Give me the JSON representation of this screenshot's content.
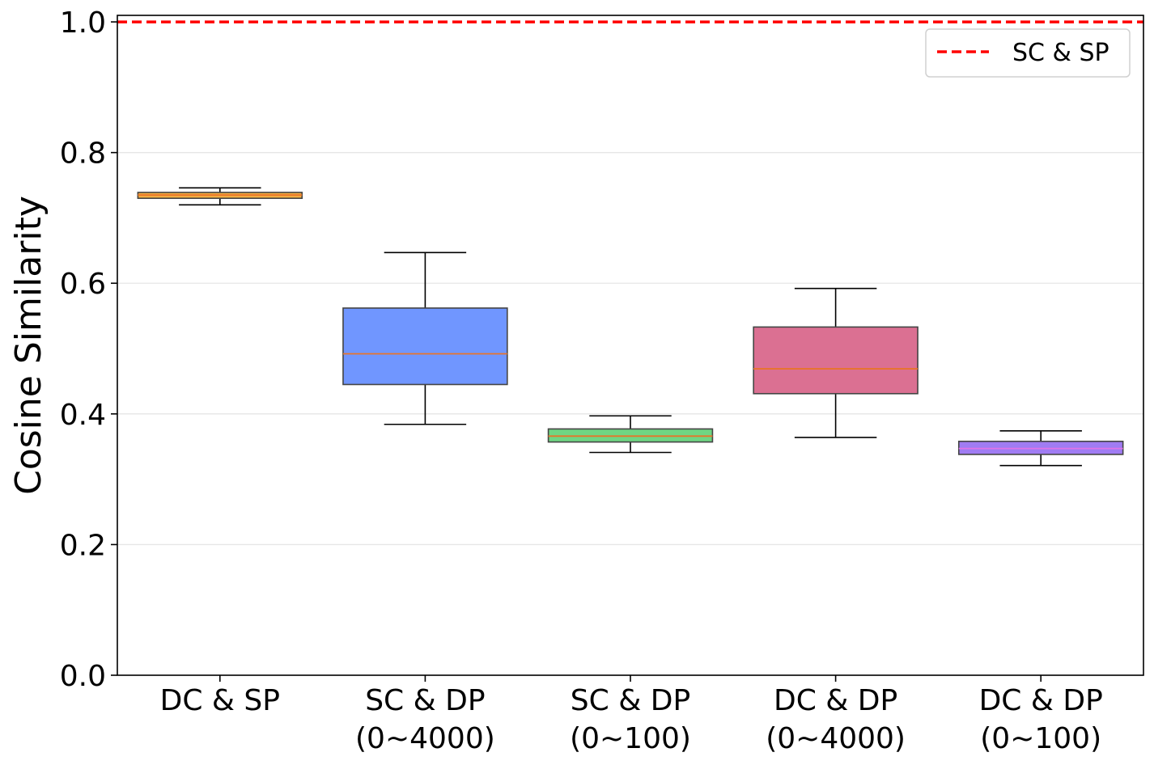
{
  "chart_data": {
    "type": "box",
    "title": "",
    "xlabel": "",
    "ylabel": "Cosine Similarity",
    "ylim": [
      0.0,
      1.01
    ],
    "yticks": [
      "0.0",
      "0.2",
      "0.4",
      "0.6",
      "0.8",
      "1.0"
    ],
    "grid": "horizontal",
    "legend_position": "top-right",
    "categories": [
      "DC & SP",
      "SC & DP\n(0~4000)",
      "SC & DP\n(0~100)",
      "DC & DP\n(0~4000)",
      "DC & DP\n(0~100)"
    ],
    "boxes": [
      {
        "whisker_low": 0.72,
        "q1": 0.73,
        "median": 0.735,
        "q3": 0.739,
        "whisker_high": 0.746,
        "color": "#f5b041",
        "median_color": "#e8742a"
      },
      {
        "whisker_low": 0.384,
        "q1": 0.445,
        "median": 0.492,
        "q3": 0.562,
        "whisker_high": 0.647,
        "color": "#7096ff",
        "median_color": "#e8742a"
      },
      {
        "whisker_low": 0.341,
        "q1": 0.357,
        "median": 0.366,
        "q3": 0.377,
        "whisker_high": 0.397,
        "color": "#6fd683",
        "median_color": "#e8742a"
      },
      {
        "whisker_low": 0.364,
        "q1": 0.431,
        "median": 0.469,
        "q3": 0.533,
        "whisker_high": 0.592,
        "color": "#db7092",
        "median_color": "#e8742a"
      },
      {
        "whisker_low": 0.321,
        "q1": 0.338,
        "median": 0.347,
        "q3": 0.358,
        "whisker_high": 0.374,
        "color": "#a07cf3",
        "median_color": "#e073e8"
      }
    ],
    "reference_line": {
      "label": "SC & SP",
      "value": 1.0,
      "color": "#ff0000",
      "style": "dashed"
    }
  }
}
